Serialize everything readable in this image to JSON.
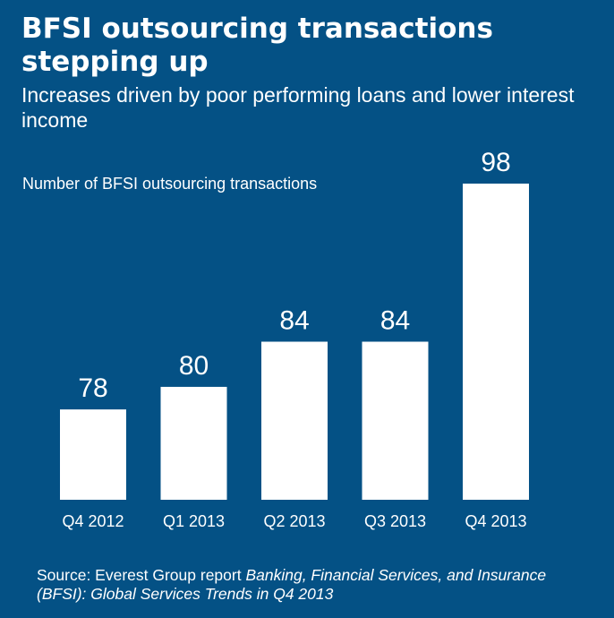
{
  "chart_data": {
    "type": "bar",
    "title": "BFSI outsourcing transactions stepping up",
    "subtitle": "Increases driven by poor performing loans and lower interest income",
    "ylabel": "Number of BFSI outsourcing transactions",
    "categories": [
      "Q4 2012",
      "Q1 2013",
      "Q2 2013",
      "Q3 2013",
      "Q4 2013"
    ],
    "values": [
      78,
      80,
      84,
      84,
      98
    ],
    "ylim": [
      70,
      98
    ],
    "grid": false,
    "colors": {
      "background": "#045185",
      "bar": "#ffffff",
      "text": "#ffffff"
    }
  },
  "source": {
    "prefix": "Source: Everest Group report ",
    "italic": "Banking, Financial Services, and Insurance (BFSI): Global Services Trends in Q4 2013"
  }
}
